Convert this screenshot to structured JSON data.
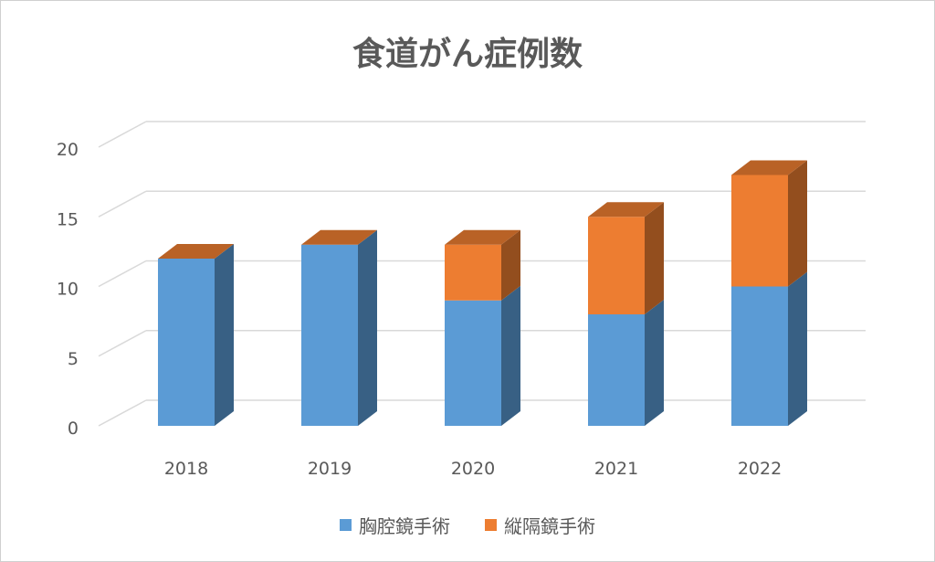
{
  "chart_data": {
    "type": "bar",
    "stacked": true,
    "three_d": true,
    "title": "食道がん症例数",
    "categories": [
      "2018",
      "2019",
      "2020",
      "2021",
      "2022"
    ],
    "series": [
      {
        "name": "胸腔鏡手術",
        "color": "#5B9BD5",
        "values": [
          12,
          13,
          9,
          8,
          10
        ]
      },
      {
        "name": "縦隔鏡手術",
        "color": "#ED7D31",
        "values": [
          0,
          0,
          4,
          7,
          8
        ]
      }
    ],
    "ylim": [
      0,
      20
    ],
    "yticks": [
      "0",
      "5",
      "10",
      "15",
      "20"
    ],
    "grid": true,
    "legend": "bottom"
  }
}
